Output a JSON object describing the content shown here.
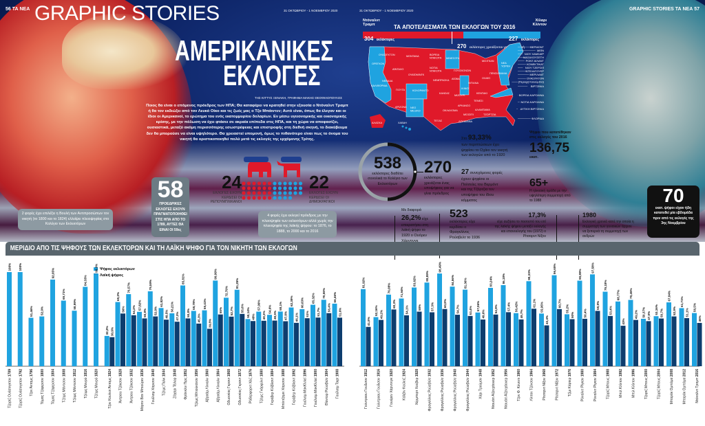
{
  "header": {
    "left_page": "56 ΤΑ ΝΕΑ",
    "section": "GRAPHIC STORIES",
    "date_left": "31 ΟΚΤΩΒΡΙΟΥ - 1 ΝΟΕΜΒΡΙΟΥ 2020",
    "date_right": "31 ΟΚΤΩΒΡΙΟΥ - 1 ΝΟΕΜΒΡΙΟΥ 2020",
    "right_page": "GRAPHIC STORIES  ΤΑ ΝΕΑ  57"
  },
  "title": {
    "line1": "ΑΜΕΡΙΚΑΝΙΚΕΣ",
    "line2": "ΕΚΛΟΓΕΣ"
  },
  "byline": "ΤΗΣ ΚΙΤΤΥΣ ΞΕΝΑΚΗ, ΓΡΑΦΗΜΑ ΜΑΚΗΣ ΘΕΟΦΙΛΟΠΟΥΛΟΣ",
  "intro": "Ποιος θα είναι ο επόμενος πρόεδρος των ΗΠΑ; Θα καταφέρει να κρατηθεί στην εξουσία ο Ντόναλντ Τραμπ ή θα τον εκδιώξει από τον Λευκό Οίκο και τις ζωές μας ο Τζο Μπάιντεν; Αυτό είναι, όπως θα έλεγαν και οι ίδιοι οι Αμερικανοί, το ερώτημα του ενός εκατομμυρίου δολαρίων. Εν μέσω υγειονομικής και οικονομικής κρίσης, με την πόλωση να έχει φτάσει σε ακραία επίπεδα στις ΗΠΑ, και τη χώρα να αποφασίζει, ουσιαστικά, μεταξύ ακόμη περισσότερης εσωστρέφειας και επιστροφής στη διεθνή σκηνή, το διακύβευμα δεν θα μπορούσε να είναι υψηλότερο. Θα χρειαστεί υπομονή, όμως το πιθανότερο είναι πως το όνομα του νικητή θα οριστικοποιηθεί πολύ μετά τις εκλογές της ερχόμενης Τρίτης.",
  "stat58": {
    "number": "58",
    "text": "ΠΡΟΕΔΡΙΚΕΣ ΕΚΛΟΓΕΣ ΕΧΟΥΝ ΠΡΑΓΜΑΤΟΠΟΙΗΘΕΙ ΣΤΙΣ ΗΠΑ ΑΠΟ ΤΟ 1789, ΑΥΤΕΣ ΘΑ ΕΙΝΑΙ ΟΙ 59ες"
  },
  "parties": {
    "republican": {
      "number": "24",
      "text": "ΕΚΛΟΓΕΣ ΕΧΟΥΝ ΚΕΡΔΙΣΕΙ ΟΙ ΡΕΠΟΥΜΠΛΙΚΑΝΟΙ",
      "wins": 24,
      "color": "#e0192a",
      "icon": "elephant-icon"
    },
    "democratic": {
      "number": "22",
      "text": "ΕΚΛΟΓΕΣ ΕΧΟΥΝ ΚΕΡΔΙΣΕΙ ΟΙ ΔΗΜΟΚΡΑΤΙΚΟΙ",
      "wins": 22,
      "color": "#1fa3e0",
      "icon": "donkey-icon"
    }
  },
  "notes": {
    "house": "2 φορές έχει επιλέξει η Βουλή των Αντιπροσώπων τον νικητή (το 1800 και το 1824) ελλείψει πλειοψηφίας στο Κολέγιο των Εκλεκτόρων",
    "minority": "4 φορές έχει εκλεγεί πρόεδρος με την πλειοψηφία των εκλεκτόρων αλλά χωρίς την πλειοψηφία της λαϊκής ψήφου: το 1876, το 1888, το 2000 και το 2016"
  },
  "map": {
    "title": "ΤΑ ΑΠΟΤΕΛΕΣΜΑΤΑ ΤΩΝ ΕΚΛΟΓΩΝ ΤΟΥ 2016",
    "trump_name": "Ντόναλντ Τραμπ",
    "clinton_name": "Χίλαρι Κλίντον",
    "trump_ev": "304",
    "clinton_ev": "227",
    "ev_word": "εκλέκτορες",
    "threshold_number": "270",
    "threshold_text": "εκλέκτορες χρειάζονται για την εκλογή",
    "trump_color": "#e0192a",
    "clinton_color": "#1fa3e0",
    "states": [
      "ΟΥΑΣΙΓΚΤΟΝ",
      "ΟΡΕΓΚΟΝ",
      "ΚΑΛΙΦΟΡΝΙΑ",
      "ΝΕΒΑΔΑ",
      "ΑΪΝΤΑΧΟ",
      "ΜΟΝΤΑΝΑ",
      "ΟΥΑΪΟΜΙΝΓΚ",
      "ΓΙΟΥΤΑ",
      "ΑΡΙΖΟΝΑ",
      "ΚΟΛΟΡΑΝΤΟ",
      "ΝΕΟ ΜΕΞΙΚΟ",
      "ΒΟΡΕΙΑ ΝΤΑΚΟΤΑ",
      "ΝΟΤΙΑ ΝΤΑΚΟΤΑ",
      "ΝΕΜΠΡΑΣΚΑ",
      "ΚΑΝΣΑΣ",
      "ΟΚΛΑΧΟΜΑ",
      "ΤΕΞΑΣ",
      "ΜΙΝΕΣΟΤΑ",
      "ΑΪΟΒΑ",
      "ΜΙΖΟΥΡΙ",
      "ΑΡΚΑΝΣΟ",
      "ΛΟΥΙΖΙΑΝΑ",
      "ΓΟΥΙΣΚΟΝΣΙΝ",
      "ΙΛΙΝΟΪ",
      "ΜΙΣΙΓΚΑΝ",
      "ΙΝΤΙΑΝΑ",
      "ΟΧΑΪΟ",
      "ΚΕΝΤΑΚΙ",
      "ΤΕΝΕΣΙ",
      "ΜΙΣΙΣΙΠΙ",
      "ΑΛΑΜΠΑΜΑ",
      "ΤΖΟΡΤΖΙΑ",
      "ΠΕΝΣΙΛΒΑΝΙΑ",
      "ΝΕΑ ΥΟΡΚΗ",
      "ΑΛΑΣΚΑ",
      "ΧΑΒΑΗ"
    ],
    "callouts": [
      "ΒΕΡΜΟΝΤ",
      "ΜΕΪΝ",
      "ΝΙΟΥ ΧΑΜΣΑΪΡ",
      "ΜΑΣΑΧΟΥΣΕΤΗ",
      "ΡΟΝΤ ΑΪΛΑΝΤ",
      "ΚΟΝΕΚΤΙΚΑΤ",
      "ΝΙΟΥ ΤΖΕΡΣΕΪ",
      "ΝΤΕΛΑΓΟΥΕΡ",
      "ΜΕΡΙΛΑΝΤ",
      "ΟΥΑΣΙΓΚΤΟΝ",
      "(Περιοχή Κολούμπια)",
      "ΒΙΡΤΖΙΝΙΑ",
      "ΒΟΡΕΙΑ ΚΑΡΟΛΙΝΑ",
      "ΝΟΤΙΑ ΚΑΡΟΛΙΝΑ",
      "ΔΥΤΙΚΗ ΒΙΡΤΖΙΝΙΑ",
      "ΦΛΟΡΙΔΑ"
    ]
  },
  "facts": {
    "total_number": "538",
    "total_text": "εκλέκτορες διαθέτει συνολικά το Κολέγιο των Εκλεκτόρων",
    "needed_number": "270",
    "needed_text": "εκλέκτορες χρειάζεται ένας υποψήφιος για να γίνει πρόεδρος",
    "ohio_prefix": "Στο",
    "ohio_number": "93,33%",
    "ohio_text": "των περιπτώσεων έχει ψηφίσει το Οχάιο τον νικητή των εκλογών από το 1920",
    "states27_number": "27",
    "states27_text": "συνεχόμενες φορές έχουν ψηφίσει οι Πολιτείες του Βερμόντ και της Τζόρτζια τον υποψήφιο του ίδιου κόμματος",
    "votes_title": "Ψήφοι που κατατέθηκαν στις εκλογές του 2016",
    "votes_number": "136,75",
    "votes_unit": "εκατ.",
    "age_number": "65+",
    "age_text": "Η ηλικιακή ομάδα με την υψηλότερη συμμετοχή από το 1988",
    "harding_prefix": "Με διαφορά",
    "harding_number": "26,2%",
    "harding_text": "είχε επικρατήσει στη λαϊκή ψήφο το 1920 ο Ουόρεν Χάρντινγκ",
    "fdr_number": "523",
    "fdr_text": "εκλέκτορες είχε κερδίσει ο Φραγκλίνος Ρούσβελτ το 1936",
    "nixon_number": "17,3%",
    "nixon_text": "είχε αυξήσει το ποσοστό του επί της λαϊκής ψήφου μεταξύ εκλογής και επανεκλογής του (1972) ο Ρίτσαρντ Νίξον",
    "women_number": "1980",
    "women_text": "Εκλογική χρονιά κατά την οποία η συμμετοχή των γυναικών άρχισε να ξεπερνά τη συμμετοχή των ανδρών",
    "early_number": "70",
    "early_text": "εκατ. ψήφοι είχαν ήδη κατατεθεί μία εβδομάδα πριν από τις εκλογές της 3ης Νοεμβρίου"
  },
  "chart_data": {
    "type": "bar",
    "title": "ΜΕΡΙΔΙΟ ΑΠΟ ΤΙΣ ΨΗΦΟΥΣ ΤΩΝ ΕΚΛΕΚΤΟΡΩΝ ΚΑΙ ΤΗ ΛΑΪΚΗ ΨΗΦΟ ΓΙΑ ΤΟΝ ΝΙΚΗΤΗ ΤΩΝ ΕΚΛΟΓΩΝ",
    "unit": "%",
    "ylim": [
      0,
      100
    ],
    "legend": [
      {
        "name": "Ψήφος εκλεκτόρων",
        "color": "#1fa3e0"
      },
      {
        "name": "Λαϊκή ψήφος",
        "color": "#0d3d6e"
      }
    ],
    "legend_position": "top-left",
    "groups": [
      {
        "name": "Τζορτζ Ουάσινγκτον",
        "year": "1789",
        "ev": 100,
        "pv": null
      },
      {
        "name": "Τζορτζ Ουάσινγκτον",
        "year": "1792",
        "ev": 100,
        "pv": null
      },
      {
        "name": "Τζον Άνταμς",
        "year": "1796",
        "ev": 51.46,
        "pv": null
      },
      {
        "name": "Τόμας Τζέφερσον",
        "year": "1800",
        "ev": 52.9,
        "pv": null
      },
      {
        "name": "Τόμας Τζέφερσον",
        "year": "1804",
        "ev": 92.05,
        "pv": null
      },
      {
        "name": "Τζέιμς Μάντισον",
        "year": "1808",
        "ev": 69.71,
        "pv": null
      },
      {
        "name": "Τζέιμς Μάντισον",
        "year": "1812",
        "ev": 58.99,
        "pv": null
      },
      {
        "name": "Τζέιμς Μονρό",
        "year": "1816",
        "ev": 84.33,
        "pv": null
      },
      {
        "name": "Τζέιμς Μονρό",
        "year": "1820",
        "ev": 98.3,
        "pv": null
      },
      {
        "name": "Τζον Κουίνσι Άνταμς",
        "year": "1824",
        "ev": 32.2,
        "pv": 30.9
      },
      {
        "name": "Άντριου Τζάκσον",
        "year": "1828",
        "ev": 68.2,
        "pv": 56
      },
      {
        "name": "Άντριου Τζάκσον",
        "year": "1832",
        "ev": 76.57,
        "pv": 54.2
      },
      {
        "name": "Μάρτιν Βαν Μπιούρεν",
        "year": "1836",
        "ev": 57.82,
        "pv": 50.8
      },
      {
        "name": "Γουίλιαμ Χάρισον",
        "year": "1840",
        "ev": 79.59,
        "pv": 52.9
      },
      {
        "name": "Τζέιμς Πολκ",
        "year": "1844",
        "ev": 61.82,
        "pv": 49.5
      },
      {
        "name": "Ζάχαρι Τέιλορ",
        "year": "1848",
        "ev": 56.21,
        "pv": 47.3
      },
      {
        "name": "Φράνκλιν Πιρς",
        "year": "1852",
        "ev": 85.81,
        "pv": 50.8
      },
      {
        "name": "Τζέιμς Μπιούκαναν",
        "year": "1856",
        "ev": 58.78,
        "pv": 45.3
      },
      {
        "name": "Αβραάμ Λίνκολν",
        "year": "1860",
        "ev": 59.41,
        "pv": 39.8
      },
      {
        "name": "Αβραάμ Λίνκολν",
        "year": "1864",
        "ev": 90.99,
        "pv": 55
      },
      {
        "name": "Οδυσσέας Γκραντ",
        "year": "1868",
        "ev": 72.79,
        "pv": 52.7
      },
      {
        "name": "Οδυσσέας Γκραντ",
        "year": "1872",
        "ev": 81.25,
        "pv": 55.6
      },
      {
        "name": "Ράδερφορντ Χέιζ",
        "year": "1876",
        "ev": 50.14,
        "pv": 48
      },
      {
        "name": "Τζέιμς Γκάρφιλντ",
        "year": "1880",
        "ev": 57.99,
        "pv": 48.3
      },
      {
        "name": "Γκρόβερ Κλίβλαντ",
        "year": "1884",
        "ev": 54.6,
        "pv": 48.5
      },
      {
        "name": "Μπέντζαμιν Χάρισον",
        "year": "1888",
        "ev": 58.1,
        "pv": 47.8
      },
      {
        "name": "Γκρόβερ Κλίβλαντ",
        "year": "1892",
        "ev": 62.39,
        "pv": 46.1
      },
      {
        "name": "Γουίλιαμ ΜακΚίνλεϊ",
        "year": "1896",
        "ev": 60.63,
        "pv": 51
      },
      {
        "name": "Γουίλιαμ ΜακΚίνλεϊ",
        "year": "1900",
        "ev": 65.32,
        "pv": 51.7
      },
      {
        "name": "Θίοντορ Ρούσβελτ",
        "year": "1904",
        "ev": 70.59,
        "pv": 56.4
      },
      {
        "name": "Γουίλιαμ Ταφτ",
        "year": "1908",
        "ev": 66.46,
        "pv": 51.6
      },
      {
        "name": "Γούντροου Γουίλσον",
        "year": "1912",
        "ev": 81.92,
        "pv": 41.8
      },
      {
        "name": "Γούντροου Γουίλσον",
        "year": "1916",
        "ev": 52.16,
        "pv": 49.2
      },
      {
        "name": "Γουόρεν Χάρντινγκ",
        "year": "1920",
        "ev": 76.08,
        "pv": 60.3
      },
      {
        "name": "Κάλβιν Κούλιτζ",
        "year": "1924",
        "ev": 71.94,
        "pv": 54.1
      },
      {
        "name": "Χέρμπερτ Χούβερ",
        "year": "1928",
        "ev": 83.62,
        "pv": 58
      },
      {
        "name": "Φραγκλίνος Ρούσβελτ",
        "year": "1932",
        "ev": 88.89,
        "pv": 57.3
      },
      {
        "name": "Φραγκλίνος Ρούσβελτ",
        "year": "1936",
        "ev": 98.49,
        "pv": 60.8
      },
      {
        "name": "Φραγκλίνος Ρούσβελτ",
        "year": "1940",
        "ev": 84.56,
        "pv": 54.7
      },
      {
        "name": "Φραγκλίνος Ρούσβελτ",
        "year": "1944",
        "ev": 81.36,
        "pv": 53.4
      },
      {
        "name": "Χάρι Τρούμαν",
        "year": "1948",
        "ev": 57.06,
        "pv": 49.6
      },
      {
        "name": "Ντουάιτ Αϊζενχάουερ",
        "year": "1952",
        "ev": 83.24,
        "pv": 54.9
      },
      {
        "name": "Ντουάιτ Αϊζενχάουερ",
        "year": "1956",
        "ev": 86.18,
        "pv": 57.4
      },
      {
        "name": "Τζον Φ. Κένεντι",
        "year": "1960",
        "ev": 56.42,
        "pv": 49.7
      },
      {
        "name": "Λίντον Τζόνσον",
        "year": "1964",
        "ev": 90.33,
        "pv": 61.1
      },
      {
        "name": "Ρίτσαρντ Νίξον",
        "year": "1968",
        "ev": 55.95,
        "pv": 43.4
      },
      {
        "name": "Ρίτσαρντ Νίξον",
        "year": "1972",
        "ev": 96.65,
        "pv": 60.7
      },
      {
        "name": "Τζίμι Κάρτερ",
        "year": "1976",
        "ev": 55.2,
        "pv": 50
      },
      {
        "name": "Ρόναλντ Ρίγκαν",
        "year": "1980",
        "ev": 90.89,
        "pv": 50.4
      },
      {
        "name": "Ρόναλντ Ρίγκαν",
        "year": "1984",
        "ev": 97.58,
        "pv": 58.8
      },
      {
        "name": "Τζορτζ Μπους",
        "year": "1988",
        "ev": 79.18,
        "pv": 53.4
      },
      {
        "name": "Μπιλ Κλίντον",
        "year": "1992",
        "ev": 68.77,
        "pv": 43
      },
      {
        "name": "Μπιλ Κλίντον",
        "year": "1996",
        "ev": 70.45,
        "pv": 49.2
      },
      {
        "name": "Τζορτζ Μπους",
        "year": "2000",
        "ev": 50.37,
        "pv": 47.9
      },
      {
        "name": "Τζορτζ Μπους",
        "year": "2004",
        "ev": 53.16,
        "pv": 50.7
      },
      {
        "name": "Μπαράκ Ομπάμα",
        "year": "2008",
        "ev": 67.84,
        "pv": 52.9
      },
      {
        "name": "Μπαράκ Ομπάμα",
        "year": "2012",
        "ev": 61.71,
        "pv": 51.1
      },
      {
        "name": "Ντόναλντ Τραμπ",
        "year": "2016",
        "ev": 56.5,
        "pv": 46
      }
    ]
  }
}
